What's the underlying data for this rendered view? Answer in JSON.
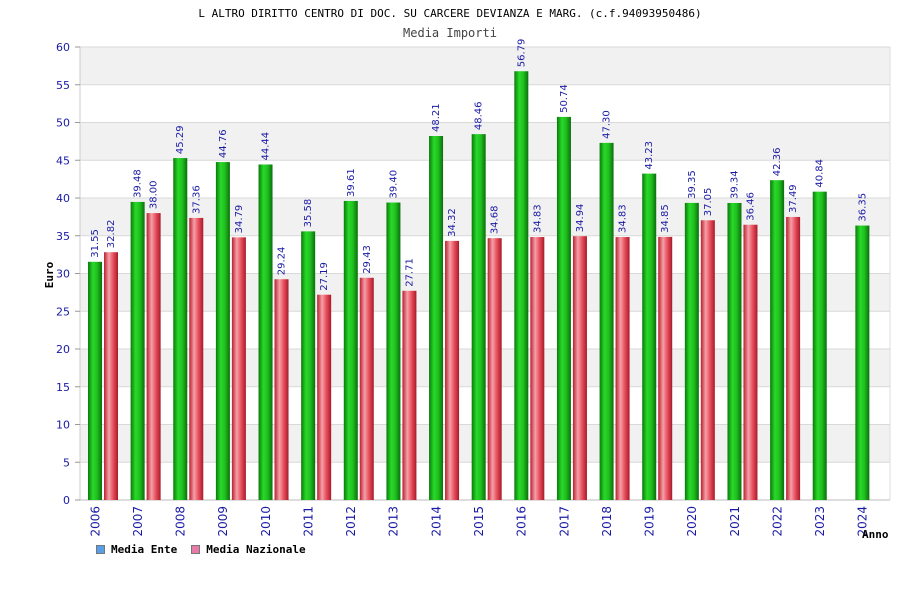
{
  "chart_data": {
    "type": "bar",
    "title": "L ALTRO DIRITTO CENTRO DI DOC. SU CARCERE DEVIANZA E MARG. (c.f.94093950486)",
    "subtitle": "Media Importi",
    "ylabel": "Euro",
    "xlabel": "Anno",
    "ylim": [
      0,
      60
    ],
    "yticks": [
      0,
      5,
      10,
      15,
      20,
      25,
      30,
      35,
      40,
      45,
      50,
      55,
      60
    ],
    "grid": "horizontal bands",
    "legend_position": "bottom-left",
    "categories": [
      "2006",
      "2007",
      "2008",
      "2009",
      "2010",
      "2011",
      "2012",
      "2013",
      "2014",
      "2015",
      "2016",
      "2017",
      "2018",
      "2019",
      "2020",
      "2021",
      "2022",
      "2023",
      "2024"
    ],
    "series": [
      {
        "name": "Media Ente",
        "legend_color": "#5b9ee8",
        "bar_color": "#1dbb1d",
        "values": [
          31.55,
          39.48,
          45.29,
          44.76,
          44.44,
          35.58,
          39.61,
          39.4,
          48.21,
          48.46,
          56.79,
          50.74,
          47.3,
          43.23,
          39.35,
          39.34,
          42.36,
          40.84,
          36.35
        ],
        "labels": [
          "31.55",
          "39.48",
          "45.29",
          "44.76",
          "44.44",
          "35.58",
          "39.61",
          "39.40",
          "48.21",
          "48.46",
          "56.79",
          "50.74",
          "47.30",
          "43.23",
          "39.35",
          "39.34",
          "42.36",
          "40.84",
          "36.35"
        ]
      },
      {
        "name": "Media Nazionale",
        "legend_color": "#e87aa8",
        "bar_color": "#e8404f",
        "values": [
          32.82,
          38.0,
          37.36,
          34.79,
          29.24,
          27.19,
          29.43,
          27.71,
          34.32,
          34.68,
          34.83,
          34.94,
          34.83,
          34.85,
          37.05,
          36.46,
          37.49,
          null,
          null
        ],
        "labels": [
          "32.82",
          "38.00",
          "37.36",
          "34.79",
          "29.24",
          "27.19",
          "29.43",
          "27.71",
          "34.32",
          "34.68",
          "34.83",
          "34.94",
          "34.83",
          "34.85",
          "37.05",
          "36.46",
          "37.49",
          null,
          null
        ]
      }
    ]
  }
}
